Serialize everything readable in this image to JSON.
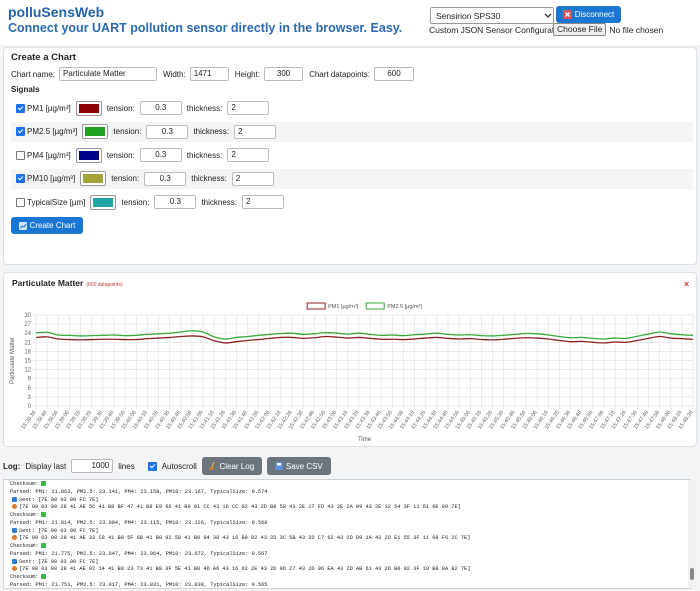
{
  "header": {
    "title": "polluSensWeb",
    "subtitle": "Connect your UART pollution sensor directly in the browser. Easy.",
    "sensor": "Sensirion SPS30",
    "disconnect": "Disconnect",
    "custom_json_label": "Custom JSON Sensor Configuration:",
    "choose_file": "Choose File",
    "no_file": "No file chosen"
  },
  "create_chart": {
    "title": "Create a Chart",
    "name_label": "Chart name:",
    "name": "Particulate Matter",
    "width_label": "Width:",
    "width": 1471,
    "height_label": "Height:",
    "height": 300,
    "datapoints_label": "Chart datapoints:",
    "datapoints": 600,
    "signals_title": "Signals",
    "tension_label": "tension:",
    "thickness_label": "thickness:",
    "signals": [
      {
        "checked": true,
        "name": "PM1 [µg/m³]",
        "color": "#8b0000",
        "tension": 0.3,
        "thickness": 2
      },
      {
        "checked": true,
        "name": "PM2.5 [µg/m³]",
        "color": "#1fa01f",
        "tension": 0.3,
        "thickness": 2
      },
      {
        "checked": false,
        "name": "PM4 [µg/m³]",
        "color": "#00008b",
        "tension": 0.3,
        "thickness": 2
      },
      {
        "checked": true,
        "name": "PM10 [µg/m³]",
        "color": "#a3a33a",
        "tension": 0.3,
        "thickness": 2
      },
      {
        "checked": false,
        "name": "TypicalSize [µm]",
        "color": "#22a3a3",
        "tension": 0.3,
        "thickness": 2
      }
    ],
    "button": "Create Chart"
  },
  "chart_data": {
    "type": "line",
    "title": "Particulate Matter",
    "subtitle": "(600 datapoints)",
    "close": "×",
    "categories": [
      "15:38:36",
      "15:38:46",
      "15:38:56",
      "15:39:06",
      "15:39:16",
      "15:39:26",
      "15:39:36",
      "15:39:46",
      "15:39:56",
      "15:40:06",
      "15:40:16",
      "15:40:26",
      "15:40:36",
      "15:40:46",
      "15:40:56",
      "15:41:06",
      "15:41:16",
      "15:41:26",
      "15:41:36",
      "15:41:46",
      "15:41:56",
      "15:42:06",
      "15:42:16",
      "15:42:26",
      "15:42:36",
      "15:42:46",
      "15:42:56",
      "15:43:06",
      "15:43:16",
      "15:43:26",
      "15:43:36",
      "15:43:46",
      "15:43:56",
      "15:44:06",
      "15:44:16",
      "15:44:26",
      "15:44:36",
      "15:44:46",
      "15:44:56",
      "15:45:06",
      "15:45:16",
      "15:45:26",
      "15:45:36",
      "15:45:46",
      "15:45:56",
      "15:46:06",
      "15:46:16",
      "15:46:26",
      "15:46:36",
      "15:46:46",
      "15:46:56",
      "15:47:06",
      "15:47:16",
      "15:47:26",
      "15:47:36",
      "15:47:46",
      "15:47:56",
      "15:48:06",
      "15:48:16",
      "15:48:26"
    ],
    "series": [
      {
        "name": "PM1 [µg/m³]",
        "color": "#8b2323",
        "values": [
          22.6,
          22.8,
          22.1,
          21.9,
          21.8,
          21.9,
          22.0,
          22.0,
          21.9,
          21.9,
          22.2,
          22.4,
          22.6,
          22.9,
          23.1,
          22.8,
          21.5,
          20.8,
          21.2,
          21.6,
          21.9,
          22.3,
          22.6,
          22.6,
          22.3,
          22.5,
          22.9,
          22.7,
          22.4,
          22.6,
          22.3,
          22.0,
          22.0,
          21.9,
          22.1,
          22.4,
          22.6,
          22.3,
          22.1,
          22.2,
          21.9,
          21.8,
          22.0,
          22.3,
          22.5,
          22.4,
          22.1,
          21.6,
          21.2,
          21.3,
          21.0,
          20.8,
          21.1,
          21.0,
          21.6,
          22.3,
          22.9,
          22.4,
          22.2,
          22.0
        ]
      },
      {
        "name": "PM2.5 [µg/m³]",
        "color": "#3aa83a",
        "values": [
          24.1,
          24.3,
          23.4,
          23.3,
          23.1,
          23.2,
          23.3,
          23.4,
          23.2,
          23.3,
          23.6,
          23.8,
          24.0,
          24.4,
          24.8,
          24.4,
          22.8,
          22.1,
          22.6,
          22.9,
          23.3,
          23.6,
          23.9,
          24.0,
          23.6,
          23.8,
          24.2,
          24.0,
          23.7,
          24.0,
          23.6,
          23.3,
          23.4,
          23.2,
          23.5,
          23.7,
          24.0,
          23.6,
          23.4,
          23.5,
          23.2,
          23.1,
          23.3,
          23.6,
          23.9,
          23.8,
          23.4,
          22.9,
          22.5,
          22.6,
          22.3,
          22.1,
          22.4,
          22.3,
          23.0,
          23.7,
          24.4,
          23.8,
          23.5,
          23.3
        ]
      }
    ],
    "ylim": [
      0,
      30
    ],
    "yticks": [
      0,
      3,
      6,
      9,
      12,
      15,
      18,
      21,
      24,
      27,
      30
    ],
    "grid": true,
    "legend": "top",
    "xlabel": "Time",
    "ylabel": "Particulate Matter"
  },
  "log": {
    "label": "Log:",
    "display_last": "Display last",
    "lines": 1000,
    "lines_label": "lines",
    "autoscroll_checked": true,
    "autoscroll": "Autoscroll",
    "clear": "Clear Log",
    "save": "Save CSV",
    "entries": [
      {
        "kind": "checksum",
        "text": "Checksum:"
      },
      {
        "kind": "parsed",
        "text": "Parsed: PM1: 21.863, PM2.5: 23.141, PM4: 23.158, PM10: 23.167, TypicalSize: 0.574"
      },
      {
        "kind": "sent",
        "text": "Sent: [7E 00 03 00 FC 7E]"
      },
      {
        "kind": "received",
        "text": "[7E 00 03 00 28 41 AE 5C 41 B8 BF 47 41 B8 E9 66 41 B9 01 CC 43 16 CC 02 43 2D B8 58 43 2E 17 FD 43 2E 2A 09 43 2E 32 54 3F 11 61 6E 80 7E]"
      },
      {
        "kind": "checksum",
        "text": "Checksum:"
      },
      {
        "kind": "parsed",
        "text": "Parsed: PM1: 21.814, PM2.5: 23.094, PM4: 23.115, PM10: 23.126, TypicalSize: 0.568"
      },
      {
        "kind": "sent",
        "text": "Sent: [7E 00 03 00 FC 7E]"
      },
      {
        "kind": "received",
        "text": "[7E 00 03 00 28 41 AE 32 C8 41 B8 5F 6B 41 B8 92 58 41 B8 94 38 43 16 B9 82 43 2D 3C 5B 43 2D C7 62 43 2D D9 1A 43 2D E1 55 3F 11 08 F6 2C 7E]"
      },
      {
        "kind": "checksum",
        "text": "Checksum:"
      },
      {
        "kind": "parsed",
        "text": "Parsed: PM1: 21.775, PM2.5: 23.047, PM4: 23.064, PM10: 23.072, TypicalSize: 0.567"
      },
      {
        "kind": "sent",
        "text": "Sent: [7E 00 03 00 FC 7E]"
      },
      {
        "kind": "received",
        "text": "[7E 00 03 00 28 41 AE 02 14 41 B8 23 73 41 B8 3F 5E 41 B8 4D A6 43 16 62 2E 43 2D 0D 27 43 2D 96 EA 43 2D AB 61 43 2D B0 92 3F 10 B8 8A 82 7E]"
      },
      {
        "kind": "checksum",
        "text": "Checksum:"
      },
      {
        "kind": "parsed",
        "text": "Parsed: PM1: 21.751, PM2.5: 23.017, PM4: 23.031, PM10: 23.038, TypicalSize: 0.565"
      }
    ]
  }
}
